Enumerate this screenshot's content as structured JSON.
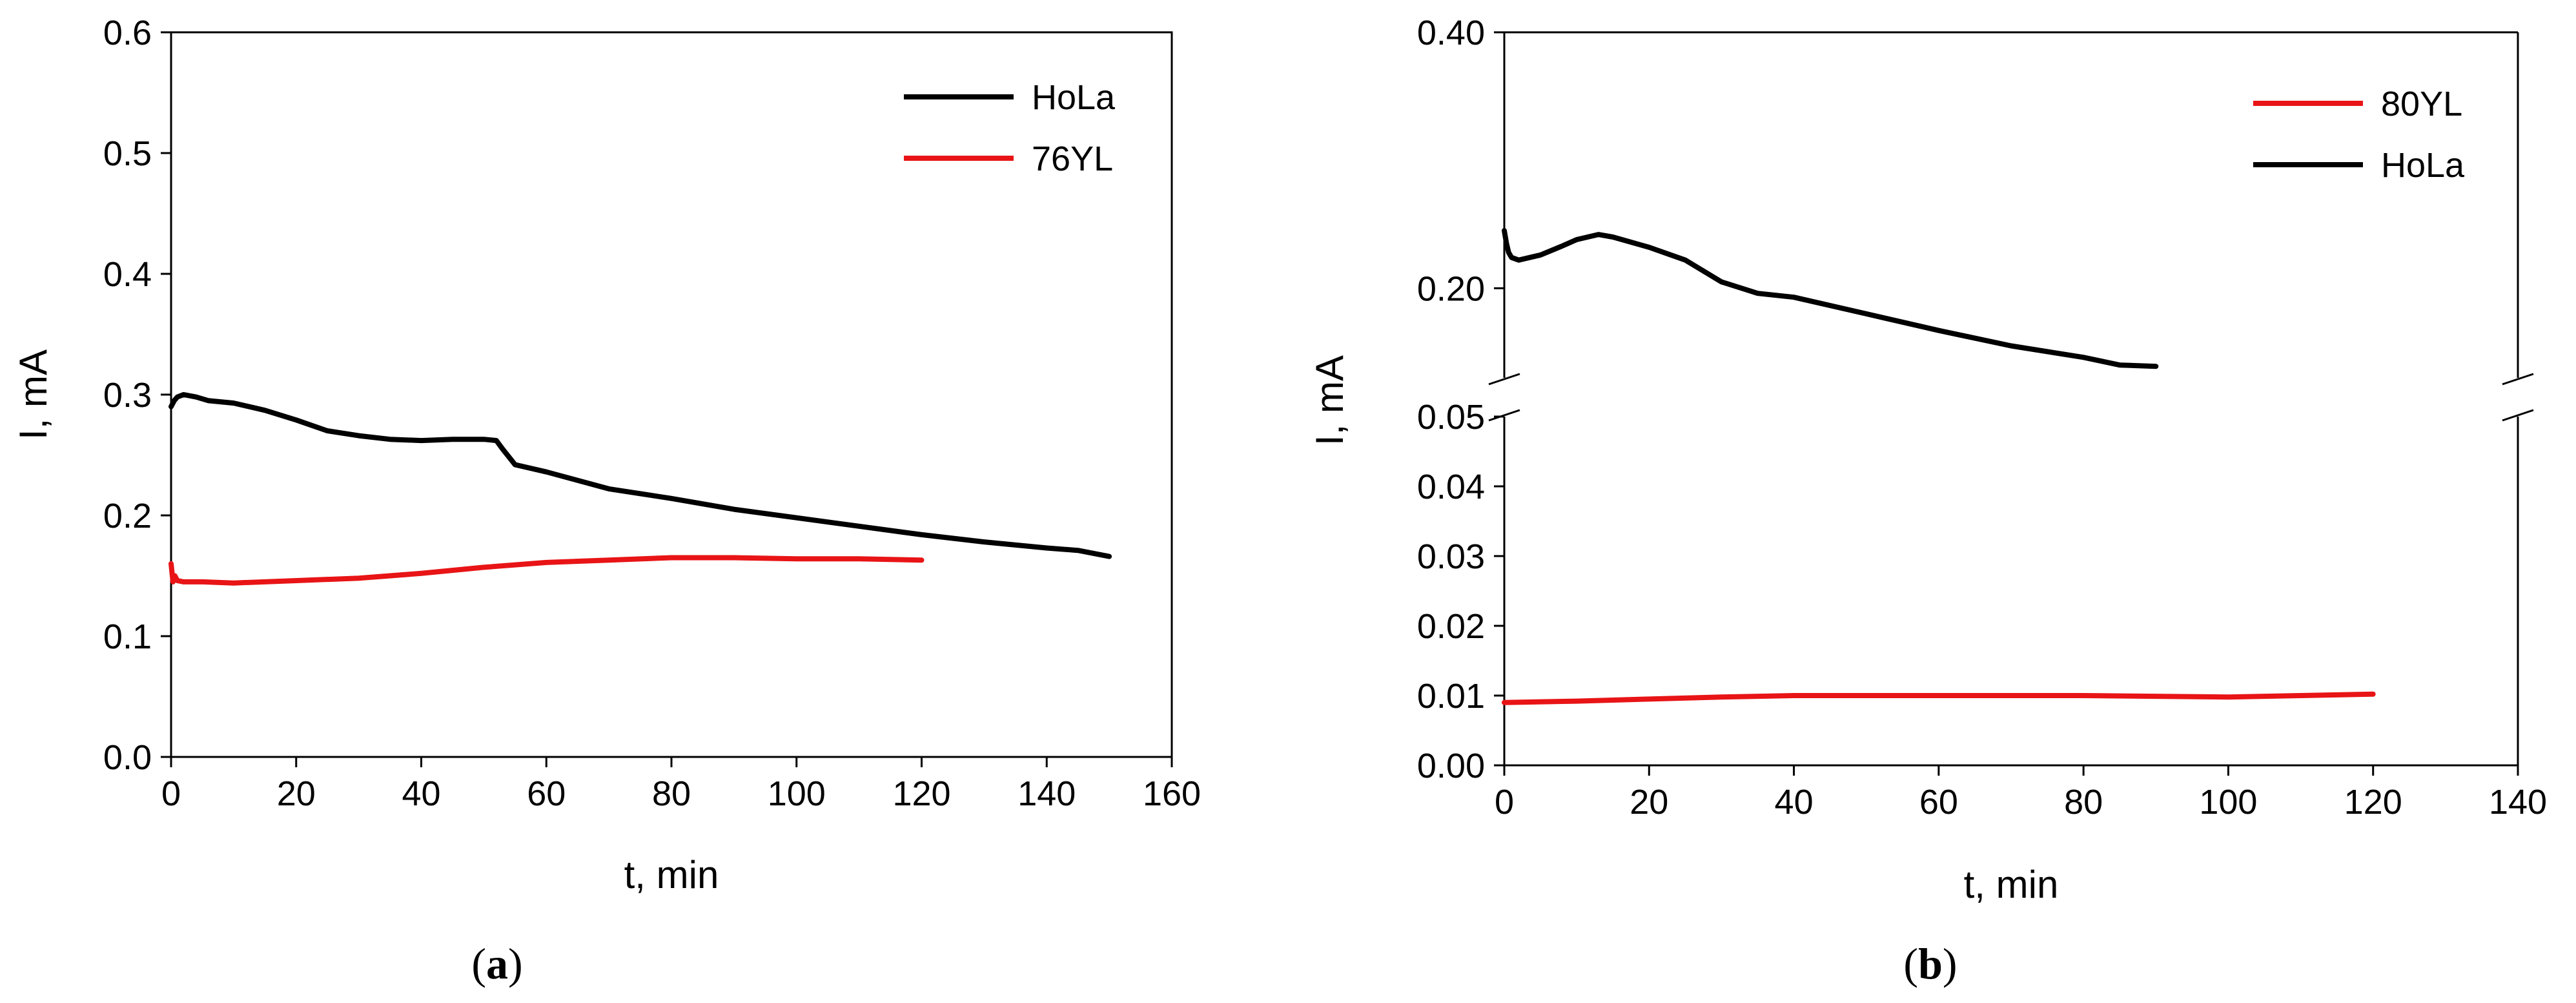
{
  "figure": {
    "panel_a_caption": {
      "open": "(",
      "letter": "a",
      "close": ")"
    },
    "panel_b_caption": {
      "open": "(",
      "letter": "b",
      "close": ")"
    }
  },
  "chart_data": [
    {
      "type": "line",
      "panel": "a",
      "title": "",
      "xlabel": "t, min",
      "ylabel": "I, mA",
      "xlim": [
        0,
        160
      ],
      "ylim": [
        0,
        0.6
      ],
      "x_ticks": [
        0,
        20,
        40,
        60,
        80,
        100,
        120,
        140,
        160
      ],
      "x_tick_labels": [
        "0",
        "20",
        "40",
        "60",
        "80",
        "100",
        "120",
        "140",
        "160"
      ],
      "y_ticks": [
        0,
        0.1,
        0.2,
        0.3,
        0.4,
        0.5,
        0.6
      ],
      "y_tick_labels": [
        "0.0",
        "0.1",
        "0.2",
        "0.3",
        "0.4",
        "0.5",
        "0.6"
      ],
      "grid": false,
      "legend_position": "top-right",
      "series": [
        {
          "name": "HoLa",
          "color": "#000000",
          "x": [
            0,
            0.5,
            1,
            2,
            4,
            6,
            10,
            15,
            20,
            25,
            30,
            35,
            40,
            45,
            50,
            52,
            53,
            55,
            60,
            70,
            80,
            90,
            100,
            110,
            120,
            130,
            140,
            145,
            150
          ],
          "y": [
            0.29,
            0.295,
            0.298,
            0.3,
            0.298,
            0.295,
            0.293,
            0.287,
            0.279,
            0.27,
            0.266,
            0.263,
            0.262,
            0.263,
            0.263,
            0.262,
            0.255,
            0.242,
            0.236,
            0.222,
            0.214,
            0.205,
            0.198,
            0.191,
            0.184,
            0.178,
            0.173,
            0.171,
            0.166
          ]
        },
        {
          "name": "76YL",
          "color": "#e81416",
          "x": [
            0,
            0.3,
            0.6,
            1,
            2,
            5,
            10,
            20,
            30,
            40,
            50,
            60,
            70,
            80,
            90,
            100,
            110,
            120
          ],
          "y": [
            0.16,
            0.145,
            0.15,
            0.146,
            0.145,
            0.145,
            0.144,
            0.146,
            0.148,
            0.152,
            0.157,
            0.161,
            0.163,
            0.165,
            0.165,
            0.164,
            0.164,
            0.163
          ]
        }
      ]
    },
    {
      "type": "line",
      "panel": "b",
      "title": "",
      "xlabel": "t, min",
      "ylabel": "I, mA",
      "xlim": [
        0,
        140
      ],
      "ylim_lower": [
        0,
        0.05
      ],
      "ylim_upper": [
        0.13,
        0.4
      ],
      "axis_break": true,
      "x_ticks": [
        0,
        20,
        40,
        60,
        80,
        100,
        120,
        140
      ],
      "x_tick_labels": [
        "0",
        "20",
        "40",
        "60",
        "80",
        "100",
        "120",
        "140"
      ],
      "y_ticks_lower": [
        0,
        0.01,
        0.02,
        0.03,
        0.04,
        0.05
      ],
      "y_tick_labels_lower": [
        "0.00",
        "0.01",
        "0.02",
        "0.03",
        "0.04",
        "0.05"
      ],
      "y_ticks_upper": [
        0.2,
        0.4
      ],
      "y_tick_labels_upper": [
        "0.20",
        "0.40"
      ],
      "grid": false,
      "legend_position": "top-right",
      "series": [
        {
          "name": "80YL",
          "color": "#e81416",
          "x": [
            0,
            10,
            20,
            30,
            40,
            50,
            60,
            70,
            80,
            90,
            100,
            110,
            120
          ],
          "y": [
            0.009,
            0.0092,
            0.0095,
            0.0098,
            0.01,
            0.01,
            0.01,
            0.01,
            0.01,
            0.0099,
            0.0098,
            0.01,
            0.0102
          ]
        },
        {
          "name": "HoLa",
          "color": "#000000",
          "x": [
            0,
            0.3,
            0.6,
            1,
            2,
            5,
            8,
            10,
            13,
            15,
            20,
            25,
            30,
            35,
            40,
            50,
            60,
            70,
            80,
            85,
            90
          ],
          "y": [
            0.245,
            0.235,
            0.228,
            0.224,
            0.222,
            0.226,
            0.233,
            0.238,
            0.242,
            0.24,
            0.232,
            0.222,
            0.205,
            0.196,
            0.193,
            0.18,
            0.167,
            0.155,
            0.146,
            0.14,
            0.139
          ]
        }
      ]
    }
  ]
}
